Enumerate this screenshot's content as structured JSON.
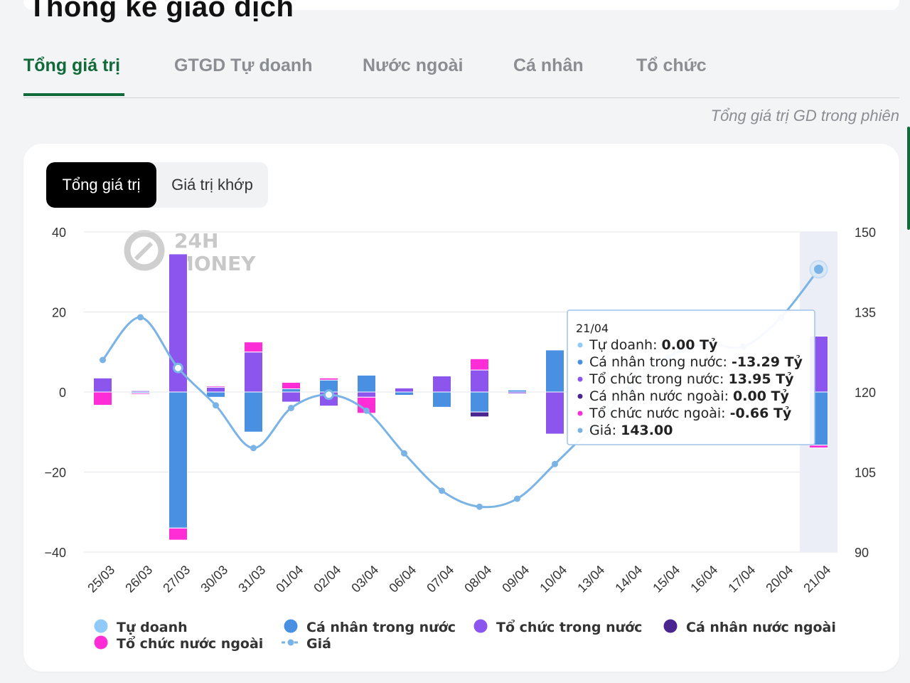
{
  "page_title": "Thống kê giao dịch",
  "tabs": [
    {
      "label": "Tổng giá trị",
      "active": true
    },
    {
      "label": "GTGD Tự doanh",
      "active": false
    },
    {
      "label": "Nước ngoài",
      "active": false
    },
    {
      "label": "Cá nhân",
      "active": false
    },
    {
      "label": "Tổ chức",
      "active": false
    }
  ],
  "subtitle": "Tổng giá trị GD trong phiên",
  "toggle": {
    "active": "Tổng giá trị",
    "inactive": "Giá trị khớp"
  },
  "watermark": {
    "line1": "24H",
    "line2": "MONEY"
  },
  "colors": {
    "tu_doanh": "#90caf9",
    "ca_nhan_trong_nuoc": "#4a90e2",
    "to_chuc_trong_nuoc": "#8b55ee",
    "ca_nhan_nuoc_ngoai": "#4a2590",
    "to_chuc_nuoc_ngoai": "#ff2dd6",
    "gia": "#7ab3e6",
    "accent": "#126a3a"
  },
  "chart_data": {
    "type": "bar",
    "stacked": true,
    "categories": [
      "25/03",
      "26/03",
      "27/03",
      "30/03",
      "31/03",
      "01/04",
      "02/04",
      "03/04",
      "06/04",
      "07/04",
      "08/04",
      "09/04",
      "10/04",
      "13/04",
      "14/04",
      "15/04",
      "16/04",
      "17/04",
      "20/04",
      "21/04"
    ],
    "y_left": {
      "min": -40,
      "max": 40,
      "ticks": [
        40,
        20,
        0,
        -20,
        -40
      ]
    },
    "y_right": {
      "min": 90,
      "max": 150,
      "ticks": [
        150,
        135,
        120,
        105,
        90
      ]
    },
    "series": [
      {
        "key": "tu_doanh",
        "name": "Tự doanh",
        "values": [
          0,
          0,
          0,
          0,
          0,
          0,
          0,
          0,
          0,
          0,
          0,
          0,
          0,
          0,
          0,
          0,
          0,
          0,
          0,
          0
        ]
      },
      {
        "key": "ca_nhan_trong_nuoc",
        "name": "Cá nhân trong nước",
        "values": [
          0,
          -0.3,
          -34,
          -1.3,
          -10,
          0.8,
          3,
          4.2,
          -0.8,
          -3.8,
          -5,
          0.5,
          10.5,
          0,
          0,
          0,
          0,
          0,
          0,
          -13.29
        ]
      },
      {
        "key": "to_chuc_trong_nuoc",
        "name": "Tổ chức trong nước",
        "values": [
          3.5,
          0.4,
          34.5,
          1.2,
          10,
          -2.5,
          -3.5,
          -1.3,
          1,
          4,
          5.5,
          -0.4,
          -10.5,
          0,
          0,
          0,
          0,
          0,
          0,
          13.95
        ]
      },
      {
        "key": "ca_nhan_nuoc_ngoai",
        "name": "Cá nhân nước ngoài",
        "values": [
          0,
          0.1,
          0,
          0,
          0,
          0,
          0,
          0,
          0,
          0,
          -1.2,
          0,
          0,
          0,
          0,
          0,
          0,
          0,
          0,
          0
        ]
      },
      {
        "key": "to_chuc_nuoc_ngoai",
        "name": "Tổ chức nước ngoài",
        "values": [
          -3.3,
          -0.3,
          -3,
          0.3,
          2.5,
          1.6,
          0.5,
          -4,
          0,
          0,
          2.8,
          0,
          0,
          0,
          0,
          0,
          0,
          0,
          0,
          -0.66
        ]
      }
    ],
    "line": {
      "key": "gia",
      "name": "Giá",
      "axis": "right",
      "values": [
        126,
        134,
        124.5,
        117.5,
        109.5,
        117,
        119.5,
        116.5,
        108.5,
        101.5,
        98.5,
        100,
        106.5,
        113.5,
        120.5,
        126.5,
        129,
        128.5,
        134,
        143
      ]
    },
    "highlight_index": 19
  },
  "tooltip": {
    "date": "21/04",
    "rows": [
      {
        "key": "tu_doanh",
        "label": "Tự doanh:",
        "value": "0.00 Tỷ"
      },
      {
        "key": "ca_nhan_trong_nuoc",
        "label": "Cá nhân trong nước:",
        "value": "-13.29 Tỷ"
      },
      {
        "key": "to_chuc_trong_nuoc",
        "label": "Tổ chức trong nước:",
        "value": "13.95 Tỷ"
      },
      {
        "key": "ca_nhan_nuoc_ngoai",
        "label": "Cá nhân nước ngoài:",
        "value": "0.00 Tỷ"
      },
      {
        "key": "to_chuc_nuoc_ngoai",
        "label": "Tổ chức nước ngoài:",
        "value": "-0.66 Tỷ"
      },
      {
        "key": "gia",
        "label": "Giá:",
        "value": "143.00"
      }
    ]
  },
  "legend": [
    {
      "key": "tu_doanh",
      "label": "Tự doanh",
      "marker": "circle"
    },
    {
      "key": "ca_nhan_trong_nuoc",
      "label": "Cá nhân trong nước",
      "marker": "circle"
    },
    {
      "key": "to_chuc_trong_nuoc",
      "label": "Tổ chức trong nước",
      "marker": "circle"
    },
    {
      "key": "ca_nhan_nuoc_ngoai",
      "label": "Cá nhân nước ngoài",
      "marker": "circle"
    },
    {
      "key": "to_chuc_nuoc_ngoai",
      "label": "Tổ chức nước ngoài",
      "marker": "circle"
    },
    {
      "key": "gia",
      "label": "Giá",
      "marker": "dash-dot"
    }
  ]
}
